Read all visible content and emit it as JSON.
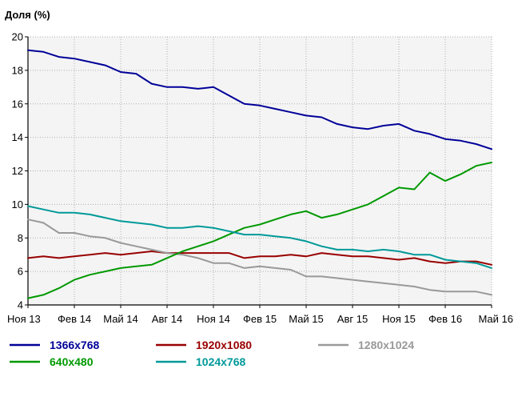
{
  "chart_data": {
    "type": "line",
    "ylabel": "Доля (%)",
    "xlabel": "",
    "ylim": [
      4,
      20
    ],
    "yticks": [
      4,
      6,
      8,
      10,
      12,
      14,
      16,
      18,
      20
    ],
    "x_tick_labels": [
      "Ноя 13",
      "Фев 14",
      "Май 14",
      "Авг 14",
      "Ноя 14",
      "Фев 15",
      "Май 15",
      "Авг 15",
      "Ноя 15",
      "Фев 16",
      "Май 16"
    ],
    "x_tick_index": [
      0,
      3,
      6,
      9,
      12,
      15,
      18,
      21,
      24,
      27,
      30
    ],
    "grid": true,
    "legend_position": "bottom",
    "series": [
      {
        "name": "1366x768",
        "color": "#000099",
        "values": [
          19.2,
          19.1,
          18.8,
          18.7,
          18.5,
          18.3,
          17.9,
          17.8,
          17.2,
          17.0,
          17.0,
          16.9,
          17.0,
          16.5,
          16.0,
          15.9,
          15.7,
          15.5,
          15.3,
          15.2,
          14.8,
          14.6,
          14.5,
          14.7,
          14.8,
          14.4,
          14.2,
          13.9,
          13.8,
          13.6,
          13.3
        ]
      },
      {
        "name": "1920x1080",
        "color": "#990000",
        "values": [
          6.8,
          6.9,
          6.8,
          6.9,
          7.0,
          7.1,
          7.0,
          7.1,
          7.2,
          7.1,
          7.1,
          7.1,
          7.1,
          7.1,
          6.8,
          6.9,
          6.9,
          7.0,
          6.9,
          7.1,
          7.0,
          6.9,
          6.9,
          6.8,
          6.7,
          6.8,
          6.6,
          6.5,
          6.6,
          6.6,
          6.4
        ]
      },
      {
        "name": "1280x1024",
        "color": "#999999",
        "values": [
          9.1,
          8.9,
          8.3,
          8.3,
          8.1,
          8.0,
          7.7,
          7.5,
          7.3,
          7.1,
          7.0,
          6.8,
          6.5,
          6.5,
          6.2,
          6.3,
          6.2,
          6.1,
          5.7,
          5.7,
          5.6,
          5.5,
          5.4,
          5.3,
          5.2,
          5.1,
          4.9,
          4.8,
          4.8,
          4.8,
          4.6
        ]
      },
      {
        "name": "640x480",
        "color": "#009900",
        "values": [
          4.4,
          4.6,
          5.0,
          5.5,
          5.8,
          6.0,
          6.2,
          6.3,
          6.4,
          6.8,
          7.2,
          7.5,
          7.8,
          8.2,
          8.6,
          8.8,
          9.1,
          9.4,
          9.6,
          9.2,
          9.4,
          9.7,
          10.0,
          10.5,
          11.0,
          10.9,
          11.9,
          11.4,
          11.8,
          12.3,
          12.5
        ]
      },
      {
        "name": "1024x768",
        "color": "#009999",
        "values": [
          9.9,
          9.7,
          9.5,
          9.5,
          9.4,
          9.2,
          9.0,
          8.9,
          8.8,
          8.6,
          8.6,
          8.7,
          8.6,
          8.4,
          8.2,
          8.2,
          8.1,
          8.0,
          7.8,
          7.5,
          7.3,
          7.3,
          7.2,
          7.3,
          7.2,
          7.0,
          7.0,
          6.7,
          6.6,
          6.5,
          6.2
        ]
      }
    ]
  }
}
